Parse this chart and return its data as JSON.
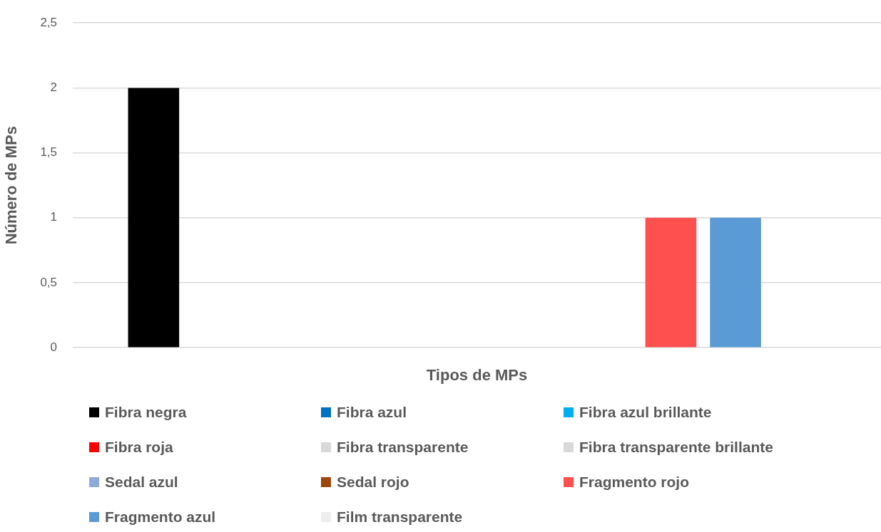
{
  "chart_data": {
    "type": "bar",
    "xlabel": "Tipos de MPs",
    "ylabel": "Número de MPs",
    "categories": [
      null
    ],
    "series": [
      {
        "name": "Fibra negra",
        "color": "#000000",
        "values": [
          2
        ]
      },
      {
        "name": "Fibra azul",
        "color": "#0070c0",
        "values": [
          0
        ]
      },
      {
        "name": "Fibra azul brillante",
        "color": "#00b0f0",
        "values": [
          0
        ]
      },
      {
        "name": "Fibra roja",
        "color": "#ff0000",
        "values": [
          0
        ]
      },
      {
        "name": "Fibra transparente",
        "color": "#d9d9d9",
        "values": [
          0
        ]
      },
      {
        "name": "Fibra transparente brillante",
        "color": "#d9d9d9",
        "values": [
          0
        ]
      },
      {
        "name": "Sedal azul",
        "color": "#8eaadb",
        "values": [
          0
        ]
      },
      {
        "name": "Sedal rojo",
        "color": "#9e480e",
        "values": [
          0
        ]
      },
      {
        "name": "Fragmento rojo",
        "color": "#ff5050",
        "values": [
          1
        ]
      },
      {
        "name": "Fragmento azul",
        "color": "#5b9bd5",
        "values": [
          1
        ]
      },
      {
        "name": "Film transparente",
        "color": "#ededed",
        "values": [
          0
        ]
      }
    ],
    "ylim": [
      0,
      2.5
    ],
    "yticks": [
      0,
      {
        "value": 0.5,
        "label": "0,5"
      },
      1,
      {
        "value": 1.5,
        "label": "1,5"
      },
      2,
      {
        "value": 2.5,
        "label": "2,5"
      }
    ],
    "grid": "y",
    "legend": "bottom"
  }
}
